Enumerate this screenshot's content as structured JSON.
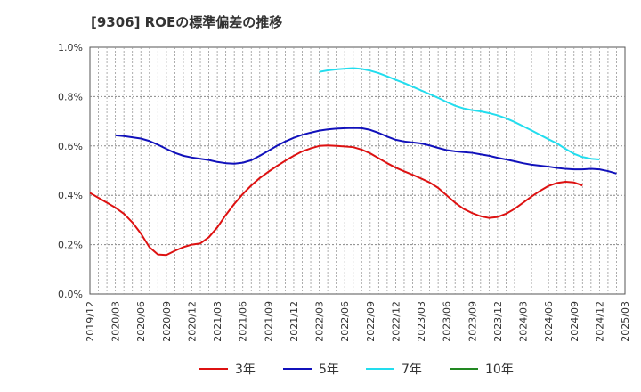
{
  "chart_data": {
    "type": "line",
    "title": "[9306]  ROEの標準偏差の推移",
    "xlabel": "",
    "ylabel": "",
    "ylim": [
      0,
      1.0
    ],
    "yticks": [
      "0.0%",
      "0.2%",
      "0.4%",
      "0.6%",
      "0.8%",
      "1.0%"
    ],
    "ytick_values": [
      0,
      0.2,
      0.4,
      0.6,
      0.8,
      1.0
    ],
    "xticks": [
      "2019/12",
      "2020/03",
      "2020/06",
      "2020/09",
      "2020/12",
      "2021/03",
      "2021/06",
      "2021/09",
      "2021/12",
      "2022/03",
      "2022/06",
      "2022/09",
      "2022/12",
      "2023/03",
      "2023/06",
      "2023/09",
      "2023/12",
      "2024/03",
      "2024/06",
      "2024/09",
      "2024/12",
      "2025/03"
    ],
    "grid": true,
    "legend_position": "bottom",
    "series": [
      {
        "name": "3年",
        "color": "#dd1111",
        "start": "2019/12",
        "values": [
          0.41,
          0.39,
          0.37,
          0.35,
          0.325,
          0.29,
          0.245,
          0.19,
          0.16,
          0.158,
          0.175,
          0.19,
          0.2,
          0.205,
          0.23,
          0.27,
          0.32,
          0.365,
          0.405,
          0.44,
          0.47,
          0.495,
          0.518,
          0.54,
          0.56,
          0.578,
          0.59,
          0.6,
          0.602,
          0.6,
          0.598,
          0.595,
          0.585,
          0.57,
          0.55,
          0.53,
          0.512,
          0.497,
          0.483,
          0.468,
          0.452,
          0.43,
          0.4,
          0.37,
          0.345,
          0.328,
          0.315,
          0.308,
          0.312,
          0.325,
          0.345,
          0.37,
          0.395,
          0.418,
          0.438,
          0.45,
          0.455,
          0.452,
          0.44
        ]
      },
      {
        "name": "5年",
        "color": "#1111bb",
        "start": "2020/03",
        "values": [
          0.643,
          0.64,
          0.635,
          0.63,
          0.62,
          0.605,
          0.588,
          0.572,
          0.56,
          0.553,
          0.548,
          0.543,
          0.535,
          0.53,
          0.528,
          0.532,
          0.542,
          0.56,
          0.58,
          0.6,
          0.618,
          0.633,
          0.645,
          0.654,
          0.662,
          0.667,
          0.67,
          0.672,
          0.673,
          0.672,
          0.665,
          0.653,
          0.638,
          0.625,
          0.618,
          0.614,
          0.61,
          0.602,
          0.592,
          0.583,
          0.578,
          0.575,
          0.572,
          0.566,
          0.56,
          0.552,
          0.545,
          0.538,
          0.53,
          0.524,
          0.52,
          0.516,
          0.511,
          0.507,
          0.505,
          0.505,
          0.507,
          0.505,
          0.498,
          0.488
        ]
      },
      {
        "name": "7年",
        "color": "#22ddee",
        "start": "2022/03",
        "values": [
          0.9,
          0.906,
          0.91,
          0.913,
          0.915,
          0.912,
          0.905,
          0.895,
          0.882,
          0.868,
          0.855,
          0.84,
          0.825,
          0.81,
          0.795,
          0.778,
          0.763,
          0.752,
          0.745,
          0.74,
          0.733,
          0.724,
          0.712,
          0.697,
          0.68,
          0.663,
          0.645,
          0.627,
          0.61,
          0.588,
          0.568,
          0.555,
          0.548,
          0.545
        ]
      },
      {
        "name": "10年",
        "color": "#228822",
        "start": "2024/12",
        "values": []
      }
    ]
  }
}
